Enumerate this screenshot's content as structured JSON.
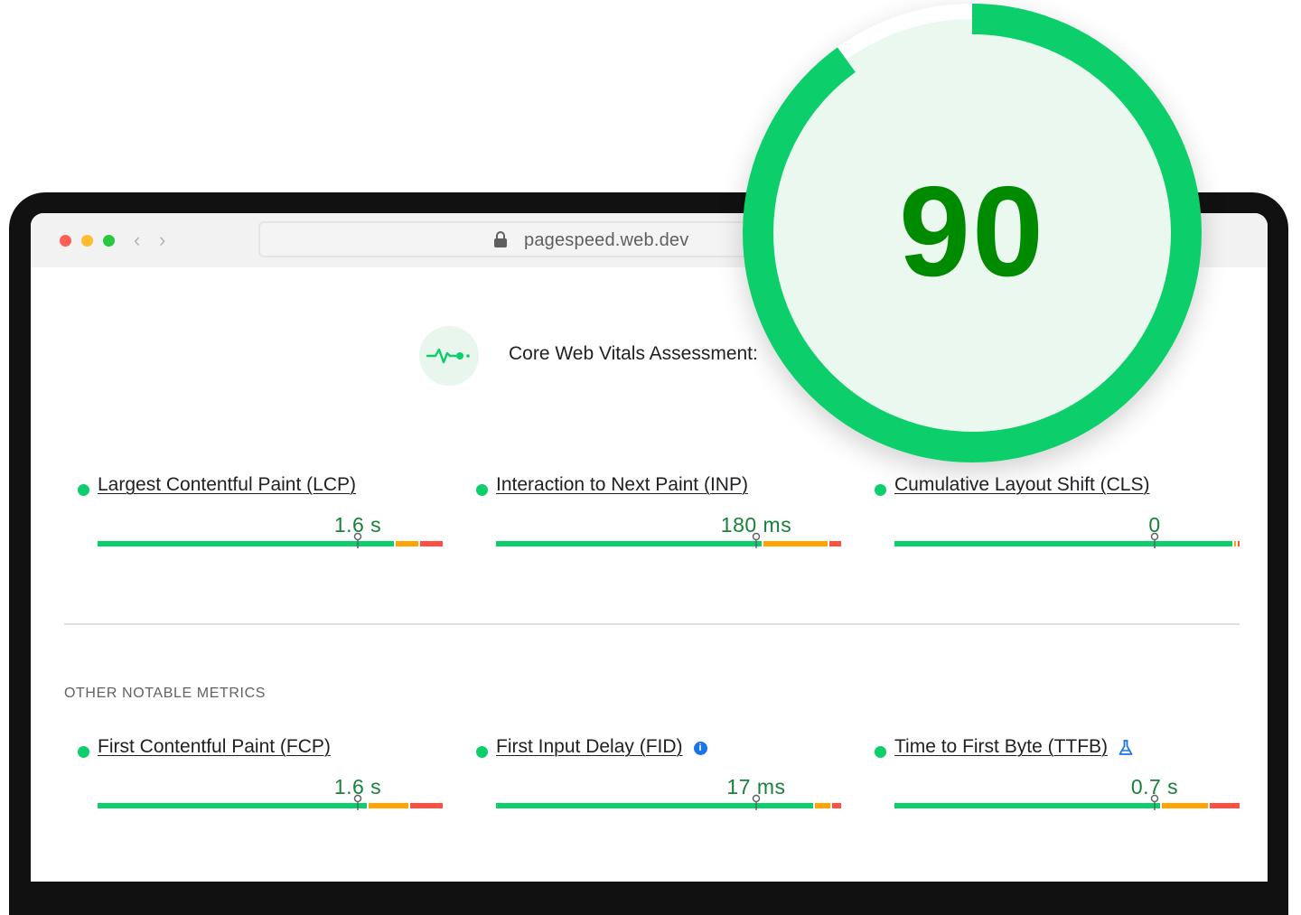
{
  "browser": {
    "url": "pagespeed.web.dev",
    "traffic_light_colors": [
      "#ff5f57",
      "#febc2e",
      "#28c840"
    ]
  },
  "colors": {
    "good": "#0cce6b",
    "needs_improvement": "#ffa400",
    "poor": "#ff4e42",
    "value_text": "#178239",
    "score_text": "#008a00"
  },
  "assessment": {
    "icon": "pulse-icon",
    "title": "Core Web Vitals Assessment:"
  },
  "core_metrics": [
    {
      "name": "Largest Contentful Paint (LCP)",
      "value": "1.6 s",
      "status": "good",
      "marker_fraction": 0.75,
      "distribution": [
        0.86,
        0.07,
        0.07
      ]
    },
    {
      "name": "Interaction to Next Paint (INP)",
      "value": "180 ms",
      "status": "good",
      "marker_fraction": 0.75,
      "distribution": [
        0.77,
        0.19,
        0.04
      ]
    },
    {
      "name": "Cumulative Layout Shift (CLS)",
      "value": "0",
      "status": "good",
      "marker_fraction": 0.75,
      "distribution": [
        0.98,
        0.01,
        0.01
      ]
    }
  ],
  "other_metrics_heading": "OTHER NOTABLE METRICS",
  "other_metrics": [
    {
      "name": "First Contentful Paint (FCP)",
      "value": "1.6 s",
      "status": "good",
      "marker_fraction": 0.75,
      "distribution": [
        0.78,
        0.12,
        0.1
      ],
      "extra_icon": null
    },
    {
      "name": "First Input Delay (FID)",
      "value": "17 ms",
      "status": "good",
      "marker_fraction": 0.75,
      "distribution": [
        0.92,
        0.05,
        0.03
      ],
      "extra_icon": "info-icon"
    },
    {
      "name": "Time to First Byte (TTFB)",
      "value": "0.7 s",
      "status": "good",
      "marker_fraction": 0.75,
      "distribution": [
        0.77,
        0.14,
        0.09
      ],
      "extra_icon": "flask-icon"
    }
  ],
  "score": {
    "value": "90",
    "fraction": 0.9,
    "color": "#0cce6b",
    "track_fill": "#ebf8f0"
  }
}
